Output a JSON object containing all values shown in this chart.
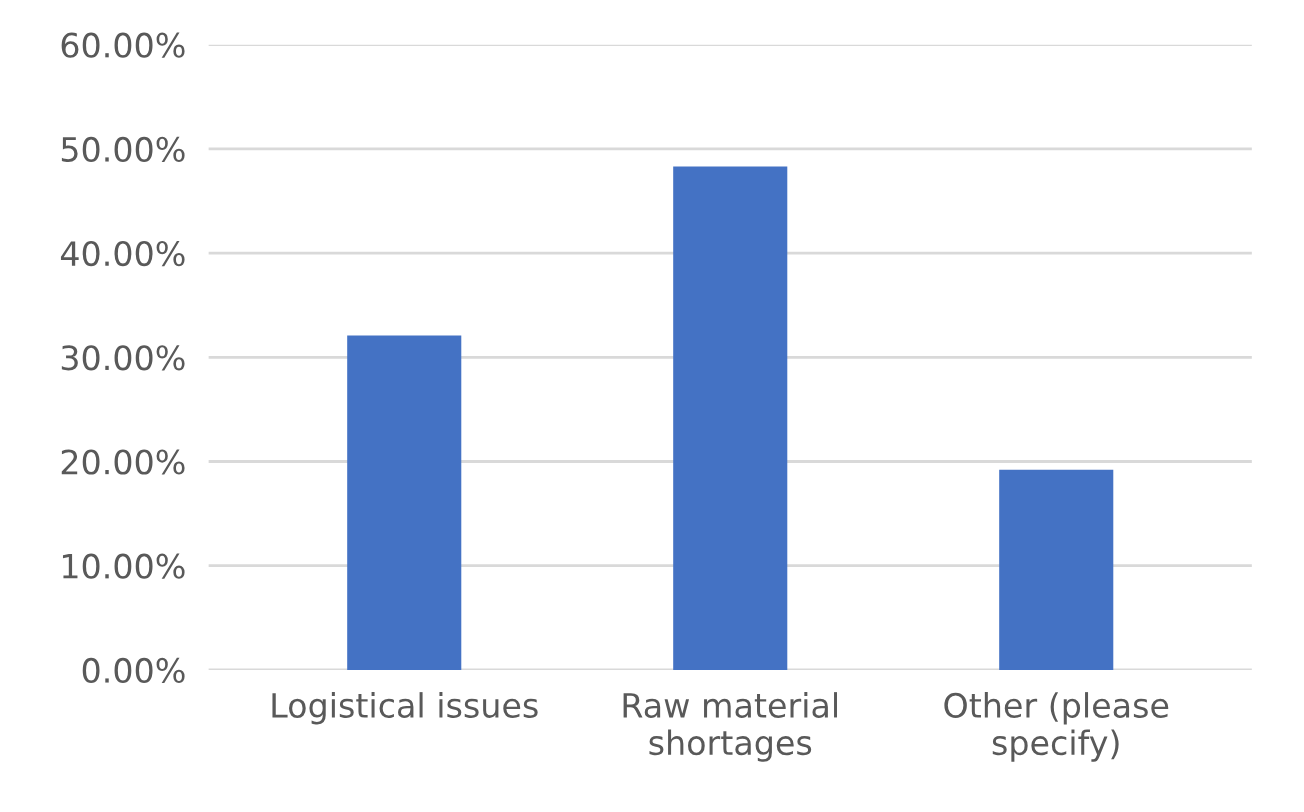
{
  "chart_data": {
    "type": "bar",
    "categories": [
      "Logistical issues",
      "Raw material\nshortages",
      "Other (please\nspecify)"
    ],
    "values": [
      32.1,
      48.3,
      19.2
    ],
    "color": "#4472c4",
    "ylim": [
      0,
      60
    ],
    "yticks": [
      {
        "value": 0,
        "label": "0.00%"
      },
      {
        "value": 10,
        "label": "10.00%"
      },
      {
        "value": 20,
        "label": "20.00%"
      },
      {
        "value": 30,
        "label": "30.00%"
      },
      {
        "value": 40,
        "label": "40.00%"
      },
      {
        "value": 50,
        "label": "50.00%"
      },
      {
        "value": 60,
        "label": "60.00%"
      }
    ],
    "grid": "y"
  }
}
